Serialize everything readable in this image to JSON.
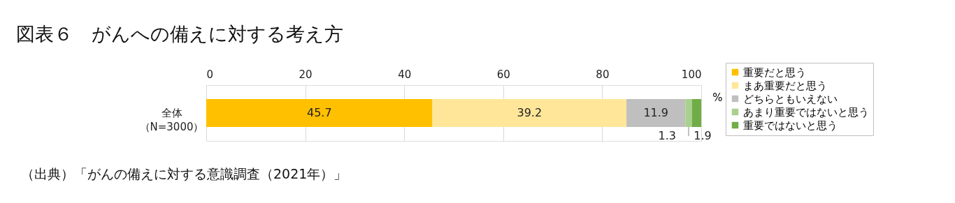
{
  "chart_data": {
    "type": "bar",
    "orientation": "horizontal",
    "stacked": true,
    "title": "図表６　がんへの備えに対する考え方",
    "xlabel": "%",
    "categories": [
      "全体（N=3000）"
    ],
    "series": [
      {
        "name": "重要だと思う",
        "color": "#ffc000",
        "values": [
          45.7
        ]
      },
      {
        "name": "まあ重要だと思う",
        "color": "#ffe699",
        "values": [
          39.2
        ]
      },
      {
        "name": "どちらともいえない",
        "color": "#bfbfbf",
        "values": [
          11.9
        ]
      },
      {
        "name": "あまり重要ではないと思う",
        "color": "#a9d18e",
        "values": [
          1.3
        ]
      },
      {
        "name": "重要ではないと思う",
        "color": "#70ad47",
        "values": [
          1.9
        ]
      }
    ],
    "xlim": [
      0,
      100
    ],
    "xticks": [
      0,
      20,
      40,
      60,
      80,
      100
    ],
    "grid": "x",
    "data_labels": true,
    "legend": "right",
    "annotations": [
      "（出典）「がんの備えに対する意識調査（2021年）」"
    ]
  }
}
